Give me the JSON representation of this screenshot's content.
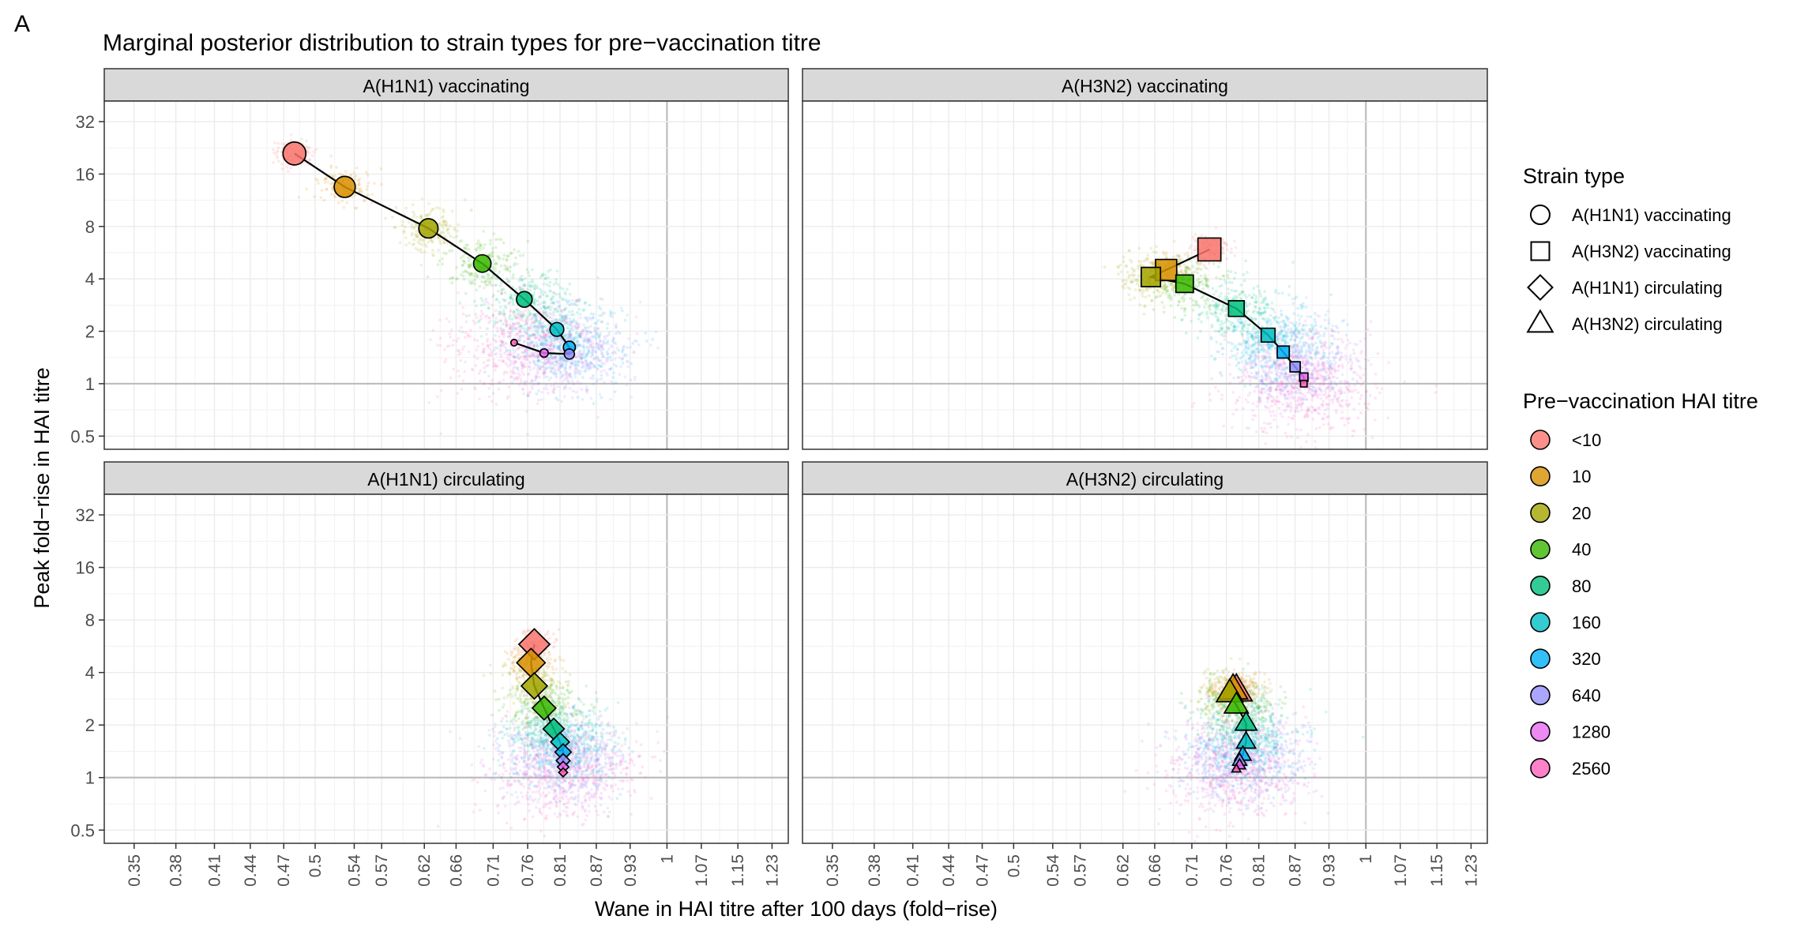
{
  "figure": {
    "panel_letter": "A",
    "title": "Marginal posterior distribution to strain types for pre−vaccination titre",
    "xlabel": "Wane in HAI titre after 100 days (fold−rise)",
    "ylabel": "Peak fold−rise in HAI titre"
  },
  "legend": {
    "shape_title": "Strain type",
    "shape_items": [
      {
        "label": "A(H1N1) vaccinating",
        "shape": "circle"
      },
      {
        "label": "A(H3N2) vaccinating",
        "shape": "square"
      },
      {
        "label": "A(H1N1) circulating",
        "shape": "diamond"
      },
      {
        "label": "A(H3N2) circulating",
        "shape": "triangle"
      }
    ],
    "color_title": "Pre−vaccination HAI titre",
    "color_items": [
      {
        "label": "<10",
        "color": "#F8766D"
      },
      {
        "label": "10",
        "color": "#D89000"
      },
      {
        "label": "20",
        "color": "#A3A500"
      },
      {
        "label": "40",
        "color": "#39B600"
      },
      {
        "label": "80",
        "color": "#00BF7D"
      },
      {
        "label": "160",
        "color": "#00BFC4"
      },
      {
        "label": "320",
        "color": "#00B0F6"
      },
      {
        "label": "640",
        "color": "#9590FF"
      },
      {
        "label": "1280",
        "color": "#E76BF3"
      },
      {
        "label": "2560",
        "color": "#FF62BC"
      }
    ]
  },
  "chart_data": {
    "type": "scatter",
    "x_scale": "log",
    "y_scale": "log",
    "x_ticks": [
      "0.35",
      "0.38",
      "0.41",
      "0.44",
      "0.47",
      "0.5",
      "0.54",
      "0.57",
      "0.62",
      "0.66",
      "0.71",
      "0.76",
      "0.81",
      "0.87",
      "0.93",
      "1",
      "1.07",
      "1.15",
      "1.23"
    ],
    "y_ticks": [
      "0.5",
      "1",
      "2",
      "4",
      "8",
      "16",
      "32"
    ],
    "xlim": [
      0.33,
      1.27
    ],
    "ylim": [
      0.42,
      42
    ],
    "grid": true,
    "legend_position": "right",
    "panels": [
      {
        "strip": "A(H1N1) vaccinating",
        "shape": "circle",
        "points": [
          {
            "titre": "<10",
            "x": 0.48,
            "y": 21
          },
          {
            "titre": "10",
            "x": 0.53,
            "y": 13.5
          },
          {
            "titre": "20",
            "x": 0.625,
            "y": 7.8
          },
          {
            "titre": "40",
            "x": 0.695,
            "y": 4.9
          },
          {
            "titre": "80",
            "x": 0.755,
            "y": 3.05
          },
          {
            "titre": "160",
            "x": 0.805,
            "y": 2.05
          },
          {
            "titre": "320",
            "x": 0.825,
            "y": 1.62
          },
          {
            "titre": "640",
            "x": 0.825,
            "y": 1.48
          },
          {
            "titre": "1280",
            "x": 0.785,
            "y": 1.5
          },
          {
            "titre": "2560",
            "x": 0.74,
            "y": 1.72
          }
        ]
      },
      {
        "strip": "A(H3N2) vaccinating",
        "shape": "square",
        "points": [
          {
            "titre": "<10",
            "x": 0.735,
            "y": 5.9
          },
          {
            "titre": "10",
            "x": 0.675,
            "y": 4.5
          },
          {
            "titre": "20",
            "x": 0.655,
            "y": 4.1
          },
          {
            "titre": "40",
            "x": 0.7,
            "y": 3.75
          },
          {
            "titre": "80",
            "x": 0.775,
            "y": 2.7
          },
          {
            "titre": "160",
            "x": 0.825,
            "y": 1.9
          },
          {
            "titre": "320",
            "x": 0.85,
            "y": 1.52
          },
          {
            "titre": "640",
            "x": 0.87,
            "y": 1.25
          },
          {
            "titre": "1280",
            "x": 0.885,
            "y": 1.09
          },
          {
            "titre": "2560",
            "x": 0.885,
            "y": 1.0
          }
        ]
      },
      {
        "strip": "A(H1N1) circulating",
        "shape": "diamond",
        "points": [
          {
            "titre": "<10",
            "x": 0.77,
            "y": 5.8
          },
          {
            "titre": "10",
            "x": 0.765,
            "y": 4.55
          },
          {
            "titre": "20",
            "x": 0.77,
            "y": 3.35
          },
          {
            "titre": "40",
            "x": 0.785,
            "y": 2.5
          },
          {
            "titre": "80",
            "x": 0.8,
            "y": 1.9
          },
          {
            "titre": "160",
            "x": 0.81,
            "y": 1.6
          },
          {
            "titre": "320",
            "x": 0.815,
            "y": 1.4
          },
          {
            "titre": "640",
            "x": 0.815,
            "y": 1.25
          },
          {
            "titre": "1280",
            "x": 0.815,
            "y": 1.15
          },
          {
            "titre": "2560",
            "x": 0.815,
            "y": 1.07
          }
        ]
      },
      {
        "strip": "A(H3N2) circulating",
        "shape": "triangle",
        "points": [
          {
            "titre": "<10",
            "x": 0.775,
            "y": 3.15
          },
          {
            "titre": "10",
            "x": 0.77,
            "y": 3.2
          },
          {
            "titre": "20",
            "x": 0.765,
            "y": 3.05
          },
          {
            "titre": "40",
            "x": 0.775,
            "y": 2.6
          },
          {
            "titre": "80",
            "x": 0.79,
            "y": 2.05
          },
          {
            "titre": "160",
            "x": 0.79,
            "y": 1.6
          },
          {
            "titre": "320",
            "x": 0.785,
            "y": 1.35
          },
          {
            "titre": "640",
            "x": 0.78,
            "y": 1.25
          },
          {
            "titre": "1280",
            "x": 0.78,
            "y": 1.18
          },
          {
            "titre": "2560",
            "x": 0.775,
            "y": 1.12
          }
        ]
      }
    ]
  }
}
